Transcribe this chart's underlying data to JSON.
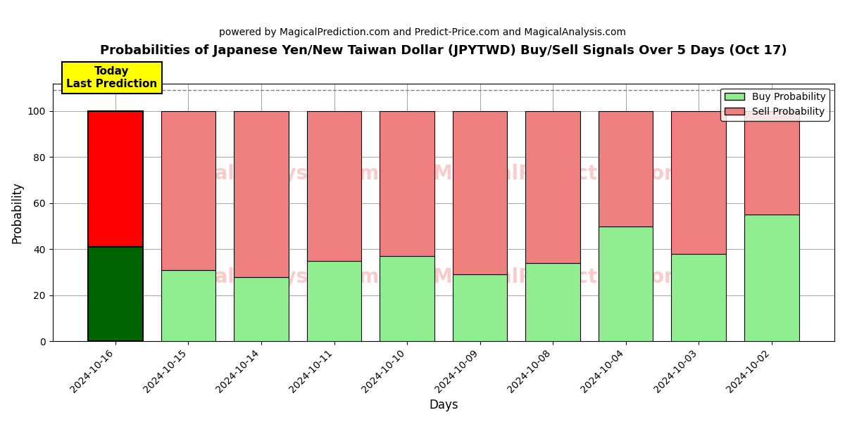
{
  "title": "Probabilities of Japanese Yen/New Taiwan Dollar (JPYTWD) Buy/Sell Signals Over 5 Days (Oct 17)",
  "subtitle": "powered by MagicalPrediction.com and Predict-Price.com and MagicalAnalysis.com",
  "xlabel": "Days",
  "ylabel": "Probability",
  "categories": [
    "2024-10-16",
    "2024-10-15",
    "2024-10-14",
    "2024-10-11",
    "2024-10-10",
    "2024-10-09",
    "2024-10-08",
    "2024-10-04",
    "2024-10-03",
    "2024-10-02"
  ],
  "buy_values": [
    41,
    31,
    28,
    35,
    37,
    29,
    34,
    50,
    38,
    55
  ],
  "sell_values": [
    59,
    69,
    72,
    65,
    63,
    71,
    66,
    50,
    62,
    45
  ],
  "today_bar_index": 0,
  "buy_color_today": "#006400",
  "sell_color_today": "#ff0000",
  "buy_color_other": "#90ee90",
  "sell_color_other": "#f08080",
  "today_box_color": "#ffff00",
  "today_label_line1": "Today",
  "today_label_line2": "Last Prediction",
  "legend_buy": "Buy Probability",
  "legend_sell": "Sell Probability",
  "ylim": [
    0,
    112
  ],
  "yticks": [
    0,
    20,
    40,
    60,
    80,
    100
  ],
  "dashed_line_y": 109,
  "background_color": "#ffffff",
  "bar_width": 0.75,
  "edge_color": "#000000"
}
